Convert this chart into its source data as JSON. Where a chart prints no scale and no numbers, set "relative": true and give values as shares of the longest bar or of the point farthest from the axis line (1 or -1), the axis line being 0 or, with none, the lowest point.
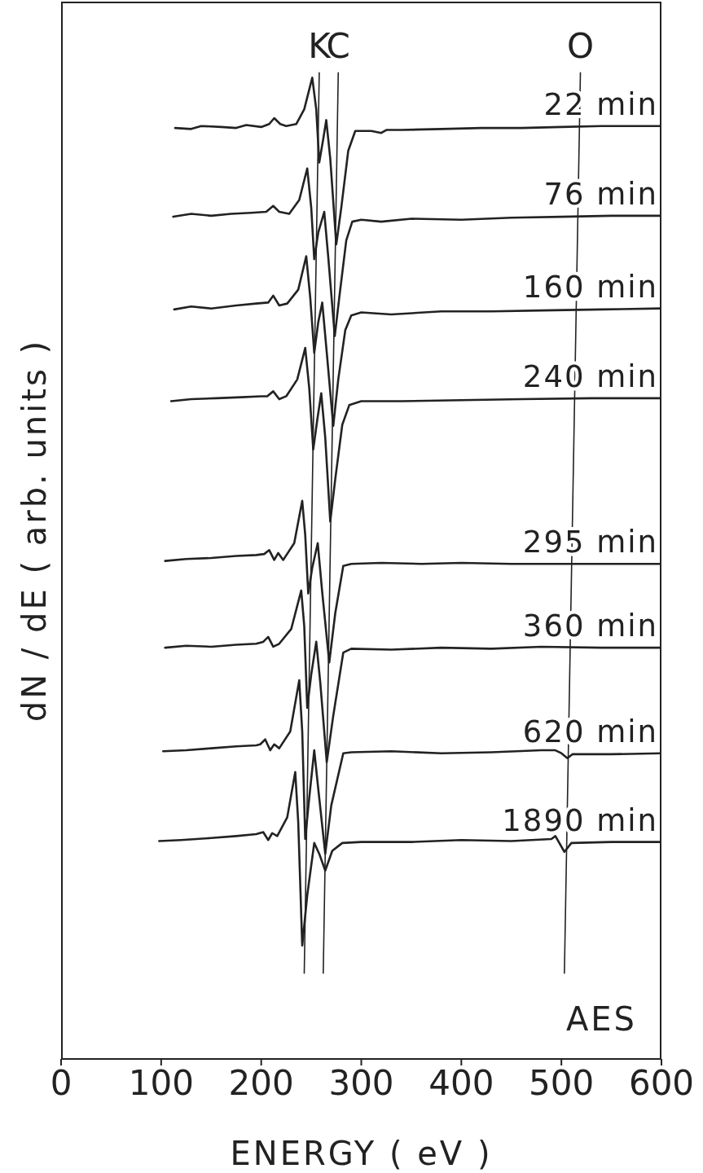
{
  "chart_data": {
    "type": "line",
    "relative": true,
    "xlabel": "ENERGY ( eV )",
    "ylabel": "dN / dE ( arb. units )",
    "xlim": [
      0,
      600
    ],
    "xticks": [
      0,
      100,
      200,
      300,
      400,
      500,
      600
    ],
    "marker": "none",
    "annotations": [
      {
        "text": "K",
        "x": 258,
        "y": 1
      },
      {
        "text": "C",
        "x": 277,
        "y": 1
      },
      {
        "text": "O",
        "x": 519,
        "y": 1
      },
      "AES"
    ],
    "series": [
      {
        "name": "22 min",
        "color": "#222222",
        "x": [
          114,
          130,
          140,
          160,
          175,
          185,
          200,
          208,
          213,
          219,
          225,
          235,
          243,
          251,
          255,
          258,
          262,
          265,
          269,
          275,
          280,
          287,
          294,
          310,
          320,
          325,
          340,
          380,
          420,
          460,
          500,
          540,
          580,
          600
        ],
        "values": [
          0.944,
          0.943,
          0.946,
          0.945,
          0.944,
          0.947,
          0.945,
          0.948,
          0.954,
          0.948,
          0.946,
          0.948,
          0.963,
          0.995,
          0.963,
          0.909,
          0.933,
          0.952,
          0.913,
          0.826,
          0.863,
          0.921,
          0.941,
          0.941,
          0.939,
          0.942,
          0.942,
          0.943,
          0.944,
          0.944,
          0.945,
          0.946,
          0.946,
          0.946
        ]
      },
      {
        "name": "76 min",
        "color": "#222222",
        "x": [
          112,
          130,
          150,
          170,
          190,
          205,
          212,
          218,
          228,
          238,
          246,
          250,
          253,
          257,
          263,
          267,
          273.5,
          278,
          285,
          291,
          300,
          320,
          350,
          400,
          450,
          500,
          550,
          600
        ],
        "values": [
          0.854,
          0.857,
          0.855,
          0.857,
          0.858,
          0.859,
          0.865,
          0.859,
          0.857,
          0.871,
          0.903,
          0.863,
          0.811,
          0.838,
          0.859,
          0.813,
          0.733,
          0.772,
          0.83,
          0.849,
          0.851,
          0.849,
          0.852,
          0.851,
          0.853,
          0.854,
          0.855,
          0.855
        ]
      },
      {
        "name": "160 min",
        "color": "#222222",
        "x": [
          113,
          130,
          150,
          175,
          195,
          207,
          212,
          218,
          226,
          237,
          245,
          249,
          253,
          257,
          261,
          265,
          272,
          277,
          284,
          290,
          300,
          330,
          380,
          430,
          480,
          540,
          600
        ],
        "values": [
          0.76,
          0.763,
          0.761,
          0.764,
          0.766,
          0.767,
          0.774,
          0.764,
          0.766,
          0.78,
          0.814,
          0.772,
          0.716,
          0.747,
          0.767,
          0.722,
          0.642,
          0.689,
          0.739,
          0.754,
          0.757,
          0.755,
          0.758,
          0.758,
          0.759,
          0.76,
          0.761
        ]
      },
      {
        "name": "240 min",
        "color": "#222222",
        "x": [
          110,
          130,
          155,
          180,
          200,
          206,
          212,
          218,
          225,
          236,
          244,
          248,
          252,
          256,
          260,
          264,
          269,
          274,
          281,
          288,
          300,
          340,
          400,
          460,
          530,
          600
        ],
        "values": [
          0.667,
          0.669,
          0.67,
          0.671,
          0.672,
          0.672,
          0.677,
          0.669,
          0.672,
          0.689,
          0.721,
          0.68,
          0.618,
          0.648,
          0.675,
          0.63,
          0.545,
          0.588,
          0.643,
          0.663,
          0.667,
          0.667,
          0.668,
          0.669,
          0.67,
          0.67
        ]
      },
      {
        "name": "295 min",
        "color": "#222222",
        "x": [
          104,
          125,
          150,
          175,
          195,
          203,
          208,
          213,
          217,
          222,
          233,
          241,
          244,
          247,
          251,
          256.5,
          261,
          268,
          274,
          282,
          290,
          320,
          360,
          400,
          450,
          500,
          550,
          600
        ],
        "values": [
          0.505,
          0.507,
          0.508,
          0.51,
          0.511,
          0.512,
          0.516,
          0.506,
          0.513,
          0.506,
          0.523,
          0.566,
          0.531,
          0.472,
          0.498,
          0.523,
          0.473,
          0.402,
          0.452,
          0.5,
          0.502,
          0.503,
          0.502,
          0.503,
          0.502,
          0.502,
          0.502,
          0.502
        ]
      },
      {
        "name": "360 min",
        "color": "#222222",
        "x": [
          104,
          125,
          150,
          175,
          195,
          202,
          207,
          212,
          218,
          230,
          240,
          243,
          246,
          250,
          255,
          259,
          265.5,
          272,
          282,
          290,
          330,
          380,
          430,
          480,
          540,
          600
        ],
        "values": [
          0.417,
          0.419,
          0.418,
          0.42,
          0.421,
          0.423,
          0.428,
          0.418,
          0.421,
          0.436,
          0.475,
          0.439,
          0.356,
          0.39,
          0.423,
          0.382,
          0.301,
          0.348,
          0.412,
          0.416,
          0.415,
          0.417,
          0.416,
          0.418,
          0.417,
          0.417
        ]
      },
      {
        "name": "620 min",
        "color": "#222222",
        "x": [
          102,
          125,
          150,
          175,
          195,
          199,
          204,
          209,
          213,
          218,
          229,
          238,
          241,
          244,
          248,
          253,
          257,
          264,
          270,
          282,
          290,
          330,
          380,
          430,
          480,
          494,
          500,
          506,
          511,
          550,
          600
        ],
        "values": [
          0.312,
          0.313,
          0.315,
          0.317,
          0.318,
          0.319,
          0.324,
          0.313,
          0.319,
          0.315,
          0.332,
          0.384,
          0.332,
          0.223,
          0.265,
          0.313,
          0.274,
          0.208,
          0.257,
          0.31,
          0.311,
          0.312,
          0.31,
          0.311,
          0.313,
          0.313,
          0.31,
          0.305,
          0.309,
          0.309,
          0.31
        ]
      },
      {
        "name": "1890 min",
        "color": "#222222",
        "x": [
          98,
          120,
          150,
          175,
          195,
          202,
          207,
          211,
          216,
          226,
          234,
          237,
          241,
          246,
          253,
          258,
          264,
          271,
          281,
          300,
          350,
          400,
          450,
          490,
          494,
          503,
          510,
          550,
          600
        ],
        "values": [
          0.221,
          0.222,
          0.224,
          0.226,
          0.228,
          0.23,
          0.222,
          0.229,
          0.226,
          0.245,
          0.291,
          0.24,
          0.115,
          0.166,
          0.219,
          0.208,
          0.191,
          0.211,
          0.219,
          0.22,
          0.22,
          0.222,
          0.221,
          0.223,
          0.226,
          0.21,
          0.219,
          0.22,
          0.22
        ]
      },
      {
        "color": "#222222",
        "x": [
          258,
          243
        ],
        "values": [
          1,
          0.087
        ]
      },
      {
        "color": "#222222",
        "x": [
          277,
          262
        ],
        "values": [
          1,
          0.087
        ]
      },
      {
        "color": "#222222",
        "x": [
          519,
          503
        ],
        "values": [
          1,
          0.087
        ]
      }
    ]
  }
}
